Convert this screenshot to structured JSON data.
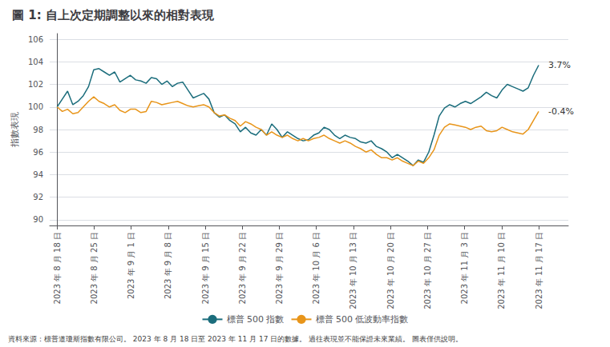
{
  "chart_data": {
    "type": "line",
    "title": "圖 1: 自上次定期調整以來的相對表現",
    "ylabel": "指數表現",
    "footnote": "資料來源：標普道瓊斯指數有限公司。 2023 年 8 月 18 日至 2023 年 11 月 17 日的數據。 過往表現並不能保證未來業績。 圖表僅供說明。",
    "x": [
      0,
      0.1413,
      0.2826,
      0.4239,
      0.5652,
      0.7065,
      0.8478,
      0.9891,
      1.1304,
      1.2717,
      1.413,
      1.5543,
      1.6957,
      1.837,
      1.9783,
      2.1196,
      2.2609,
      2.4022,
      2.5435,
      2.6848,
      2.8261,
      2.9674,
      3.1087,
      3.25,
      3.3913,
      3.5326,
      3.6739,
      3.8152,
      3.9565,
      4.0978,
      4.2391,
      4.3804,
      4.5217,
      4.663,
      4.8043,
      4.9457,
      5.087,
      5.2283,
      5.3696,
      5.5109,
      5.6522,
      5.7935,
      5.9348,
      6.0761,
      6.2174,
      6.3587,
      6.5,
      6.6413,
      6.7826,
      6.9239,
      7.0652,
      7.2065,
      7.3478,
      7.4891,
      7.6304,
      7.7717,
      7.913,
      8.0543,
      8.1957,
      8.337,
      8.4783,
      8.6196,
      8.7609,
      8.9022,
      9.0435,
      9.1848,
      9.3261,
      9.4674,
      9.6087,
      9.75,
      9.8913,
      10.0326,
      10.1739,
      10.3152,
      10.4565,
      10.5978,
      10.7391,
      10.8804,
      11.0217,
      11.163,
      11.3043,
      11.4457,
      11.587,
      11.7283,
      11.8696,
      12.0109,
      12.1522,
      12.2935,
      12.4348,
      12.5761,
      12.7174,
      12.8587,
      13
    ],
    "xlim": [
      -0.2,
      13.8
    ],
    "xticks": [
      {
        "value": 0,
        "label": "2023 年 8 月 18 日"
      },
      {
        "value": 1,
        "label": "2023 年 8 月 25 日"
      },
      {
        "value": 2,
        "label": "2023 年 9 月 1 日"
      },
      {
        "value": 3,
        "label": "2023 年 9 月 8 日"
      },
      {
        "value": 4,
        "label": "2023 年 9 月 15 日"
      },
      {
        "value": 5,
        "label": "2023 年 9 月 22 日"
      },
      {
        "value": 6,
        "label": "2023 年 9 月 29 日"
      },
      {
        "value": 7,
        "label": "2023 年 10 月 6 日"
      },
      {
        "value": 8,
        "label": "2023 年 10 月 13 日"
      },
      {
        "value": 9,
        "label": "2023 年 10 月 20 日"
      },
      {
        "value": 10,
        "label": "2023 年 10 月 27 日"
      },
      {
        "value": 11,
        "label": "2023 年 11 月 3 日"
      },
      {
        "value": 12,
        "label": "2023 年 11 月 10 日"
      },
      {
        "value": 13,
        "label": "2023 年 11 月 17 日"
      }
    ],
    "ylim": [
      89.5,
      106.5
    ],
    "yticks": [
      90,
      92,
      94,
      96,
      98,
      100,
      102,
      104,
      106
    ],
    "grid": true,
    "legend": "bottom",
    "series": [
      {
        "name": "標普 500 指數",
        "color": "#1b6d7c",
        "values": [
          100.0,
          100.7,
          101.4,
          100.2,
          100.5,
          101.0,
          101.8,
          103.3,
          103.4,
          103.1,
          102.8,
          103.1,
          102.2,
          102.5,
          102.8,
          102.4,
          102.3,
          102.1,
          102.6,
          102.5,
          102.0,
          102.3,
          101.8,
          102.1,
          102.2,
          101.5,
          100.8,
          101.0,
          101.2,
          100.7,
          99.5,
          99.1,
          99.3,
          98.8,
          98.5,
          97.8,
          98.2,
          97.7,
          97.5,
          98.0,
          97.5,
          98.5,
          98.0,
          97.3,
          97.8,
          97.5,
          97.2,
          97.0,
          97.1,
          97.5,
          97.7,
          98.2,
          98.0,
          97.5,
          97.2,
          97.5,
          97.3,
          97.2,
          96.9,
          96.8,
          97.0,
          96.5,
          96.3,
          96.0,
          95.5,
          95.8,
          95.5,
          95.2,
          94.8,
          95.3,
          95.1,
          96.0,
          97.5,
          99.2,
          99.9,
          100.2,
          100.0,
          100.3,
          100.5,
          100.3,
          100.6,
          100.9,
          101.3,
          101.0,
          100.8,
          101.5,
          102.0,
          101.8,
          101.6,
          101.4,
          101.7,
          102.8,
          103.7
        ]
      },
      {
        "name": "標普 500 低波動率指數",
        "color": "#e8951a",
        "values": [
          100.0,
          99.6,
          99.8,
          99.4,
          99.5,
          100.0,
          100.5,
          100.9,
          100.5,
          100.3,
          100.0,
          100.2,
          99.7,
          99.5,
          99.8,
          99.8,
          99.5,
          99.6,
          100.5,
          100.4,
          100.2,
          100.3,
          100.4,
          100.5,
          100.3,
          100.1,
          100.0,
          100.1,
          100.2,
          100.0,
          99.5,
          99.2,
          99.3,
          99.0,
          98.8,
          98.3,
          98.7,
          98.5,
          98.2,
          98.0,
          97.5,
          97.8,
          97.5,
          97.3,
          97.5,
          97.2,
          97.0,
          97.2,
          97.0,
          97.2,
          97.3,
          97.5,
          97.2,
          97.0,
          96.8,
          97.0,
          96.8,
          96.5,
          96.3,
          96.0,
          96.2,
          95.8,
          95.5,
          95.5,
          95.3,
          95.5,
          95.2,
          95.0,
          94.8,
          95.2,
          95.0,
          95.5,
          96.2,
          97.5,
          98.2,
          98.5,
          98.4,
          98.3,
          98.2,
          98.0,
          98.2,
          98.3,
          97.9,
          97.8,
          97.9,
          98.2,
          98.0,
          97.8,
          97.7,
          97.6,
          98.0,
          98.8,
          99.6
        ]
      }
    ],
    "annotations": [
      {
        "text": "3.7%",
        "x": 13,
        "y": 103.7
      },
      {
        "text": "-0.4%",
        "x": 13,
        "y": 99.6
      }
    ]
  }
}
